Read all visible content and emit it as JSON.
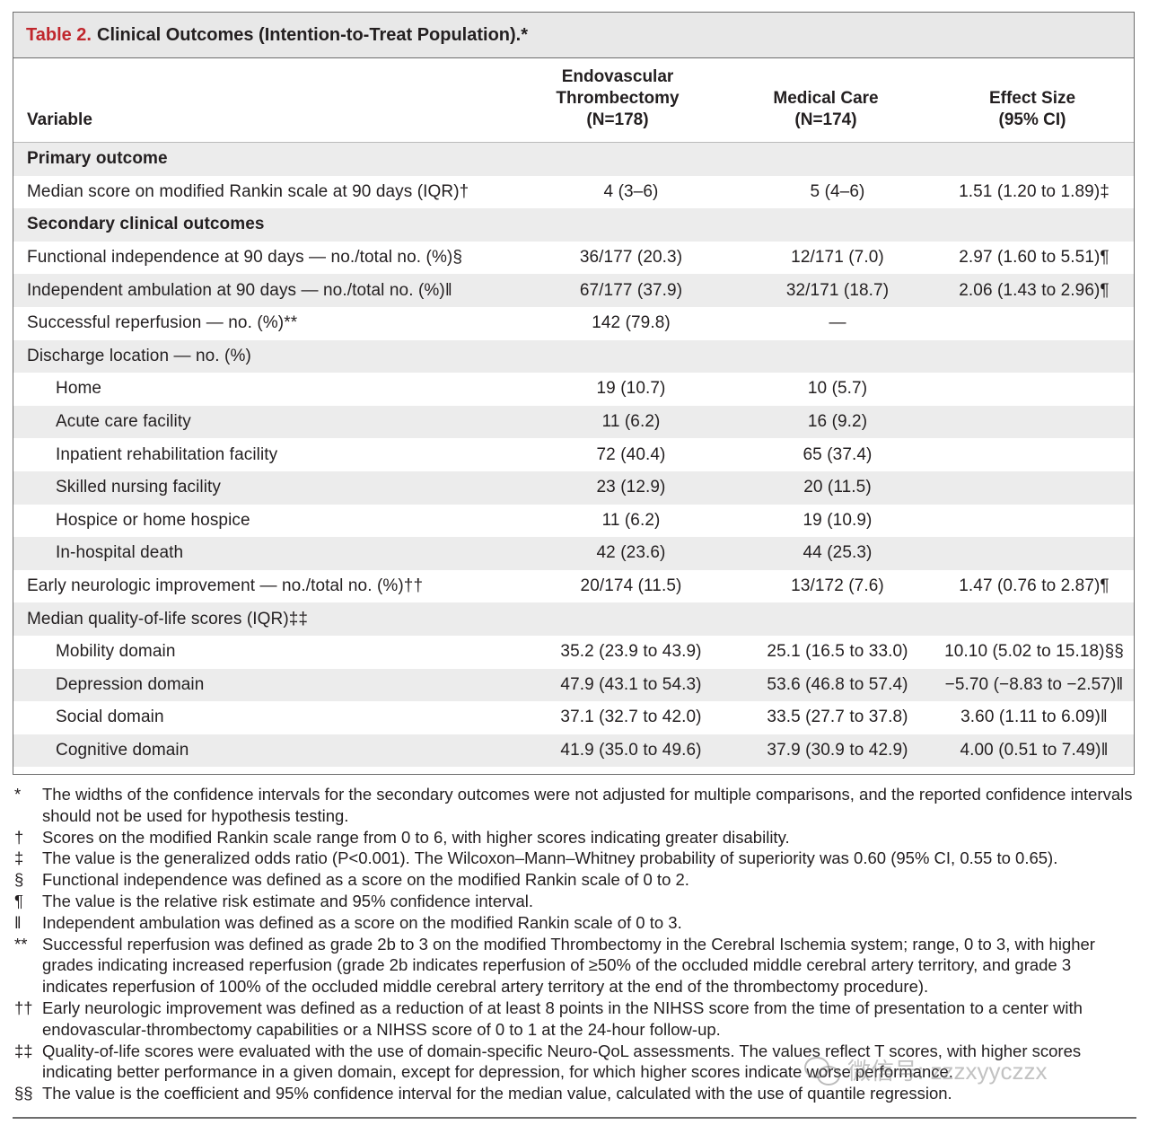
{
  "title": {
    "number": "Table 2.",
    "text": "Clinical Outcomes (Intention-to-Treat Population).*"
  },
  "header": {
    "variable": "Variable",
    "col1": [
      "Endovascular",
      "Thrombectomy",
      "(N=178)"
    ],
    "col2": [
      "Medical Care",
      "(N=174)"
    ],
    "col3": [
      "Effect Size",
      "(95% CI)"
    ]
  },
  "rows": [
    {
      "label": "Primary outcome",
      "section": true
    },
    {
      "label": "Median score on modified Rankin scale at 90 days (IQR)†",
      "v1": "4 (3–6)",
      "v2": "5 (4–6)",
      "v3": "1.51 (1.20 to 1.89)‡"
    },
    {
      "label": "Secondary clinical outcomes",
      "section": true
    },
    {
      "label": "Functional independence at 90 days — no./total no. (%)§",
      "v1": "36/177 (20.3)",
      "v2": "12/171 (7.0)",
      "v3": "2.97 (1.60 to 5.51)¶"
    },
    {
      "label": "Independent ambulation at 90 days — no./total no. (%)‖",
      "v1": "67/177 (37.9)",
      "v2": "32/171 (18.7)",
      "v3": "2.06 (1.43 to 2.96)¶"
    },
    {
      "label": "Successful reperfusion — no. (%)**",
      "v1": "142 (79.8)",
      "v2": "—",
      "v3": ""
    },
    {
      "label": "Discharge location — no. (%)",
      "v1": "",
      "v2": "",
      "v3": ""
    },
    {
      "label": "Home",
      "indent": true,
      "v1": "19 (10.7)",
      "v2": "10 (5.7)",
      "v3": ""
    },
    {
      "label": "Acute care facility",
      "indent": true,
      "v1": "11 (6.2)",
      "v2": "16 (9.2)",
      "v3": ""
    },
    {
      "label": "Inpatient rehabilitation facility",
      "indent": true,
      "v1": "72 (40.4)",
      "v2": "65 (37.4)",
      "v3": ""
    },
    {
      "label": "Skilled nursing facility",
      "indent": true,
      "v1": "23 (12.9)",
      "v2": "20 (11.5)",
      "v3": ""
    },
    {
      "label": "Hospice or home hospice",
      "indent": true,
      "v1": "11 (6.2)",
      "v2": "19 (10.9)",
      "v3": ""
    },
    {
      "label": "In-hospital death",
      "indent": true,
      "v1": "42 (23.6)",
      "v2": "44 (25.3)",
      "v3": ""
    },
    {
      "label": "Early neurologic improvement — no./total no. (%)††",
      "v1": "20/174 (11.5)",
      "v2": "13/172 (7.6)",
      "v3": "1.47 (0.76 to 2.87)¶"
    },
    {
      "label": "Median quality-of-life scores (IQR)‡‡",
      "v1": "",
      "v2": "",
      "v3": ""
    },
    {
      "label": "Mobility domain",
      "indent": true,
      "v1": "35.2 (23.9 to 43.9)",
      "v2": "25.1 (16.5 to 33.0)",
      "v3": "10.10 (5.02 to 15.18)§§"
    },
    {
      "label": "Depression domain",
      "indent": true,
      "v1": "47.9 (43.1 to 54.3)",
      "v2": "53.6 (46.8 to 57.4)",
      "v3": "−5.70 (−8.83 to −2.57)‖"
    },
    {
      "label": "Social domain",
      "indent": true,
      "v1": "37.1 (32.7 to 42.0)",
      "v2": "33.5 (27.7 to 37.8)",
      "v3": "3.60 (1.11 to 6.09)‖"
    },
    {
      "label": "Cognitive domain",
      "indent": true,
      "v1": "41.9 (35.0 to 49.6)",
      "v2": "37.9 (30.9 to 42.9)",
      "v3": "4.00 (0.51 to 7.49)‖"
    }
  ],
  "footnotes": [
    {
      "sym": "*",
      "text": "The widths of the confidence intervals for the secondary outcomes were not adjusted for multiple comparisons, and the reported confidence intervals should not be used for hypothesis testing."
    },
    {
      "sym": "†",
      "text": "Scores on the modified Rankin scale range from 0 to 6, with higher scores indicating greater disability."
    },
    {
      "sym": "‡",
      "text": "The value is the generalized odds ratio (P<0.001). The Wilcoxon–Mann–Whitney probability of superiority was 0.60 (95% CI, 0.55 to 0.65)."
    },
    {
      "sym": "§",
      "text": "Functional independence was defined as a score on the modified Rankin scale of 0 to 2."
    },
    {
      "sym": "¶",
      "text": "The value is the relative risk estimate and 95% confidence interval."
    },
    {
      "sym": "‖",
      "text": "Independent ambulation was defined as a score on the modified Rankin scale of 0 to 3."
    },
    {
      "sym": "**",
      "text": "Successful reperfusion was defined as grade 2b to 3 on the modified Thrombectomy in the Cerebral Ischemia system; range, 0 to 3, with higher grades indicating increased reperfusion (grade 2b indicates reperfusion of ≥50% of the occluded middle cerebral artery territory, and grade 3 indicates reperfusion of 100% of the occluded middle cerebral artery territory at the end of the thrombectomy procedure)."
    },
    {
      "sym": "††",
      "text": "Early neurologic improvement was defined as a reduction of at least 8 points in the NIHSS score from the time of presentation to a center with endovascular-thrombectomy capabilities or a NIHSS score of 0 to 1 at the 24-hour follow-up."
    },
    {
      "sym": "‡‡",
      "text": "Quality-of-life scores were evaluated with the use of domain-specific Neuro-QoL assessments. The values reflect T scores, with higher scores indicating better performance in a given domain, except for depression, for which higher scores indicate worse performance."
    },
    {
      "sym": "§§",
      "text": "The value is the coefficient and 95% confidence interval for the median value, calculated with the use of quantile regression."
    }
  ],
  "watermark": "微信号: zzzxyyczzx"
}
